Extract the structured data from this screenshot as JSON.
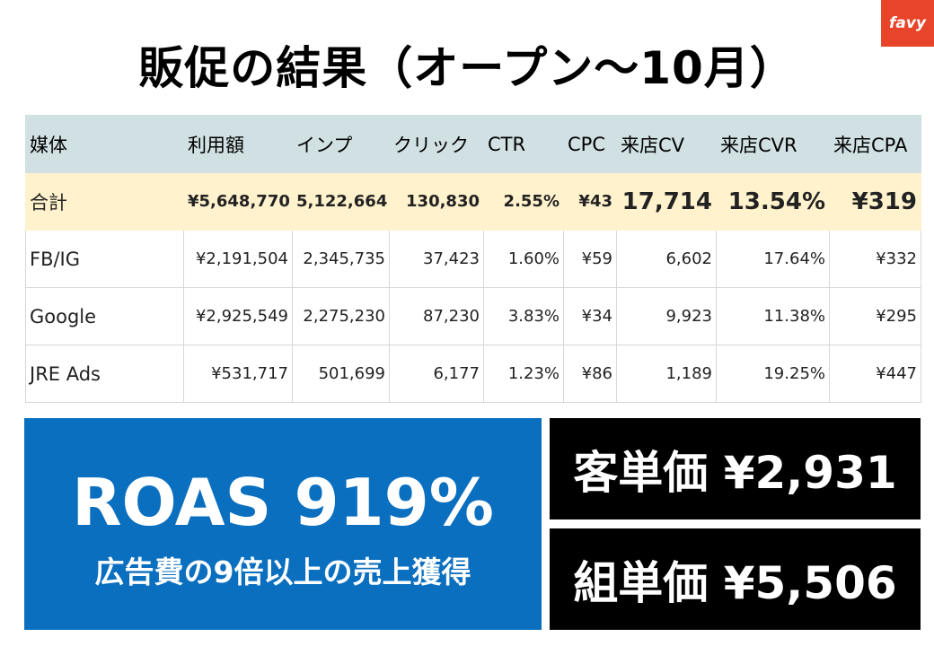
{
  "brand": {
    "logo_text": "favy",
    "logo_color": "#e8442a"
  },
  "title": "販促の結果（オープン〜10月）",
  "table": {
    "headers": [
      "媒体",
      "利用額",
      "インプ",
      "クリック",
      "CTR",
      "CPC",
      "来店CV",
      "来店CVR",
      "来店CPA"
    ],
    "total": [
      "合計",
      "¥5,648,770",
      "5,122,664",
      "130,830",
      "2.55%",
      "¥43",
      "17,714",
      "13.54%",
      "¥319"
    ],
    "rows": [
      [
        "FB/IG",
        "¥2,191,504",
        "2,345,735",
        "37,423",
        "1.60%",
        "¥59",
        "6,602",
        "17.64%",
        "¥332"
      ],
      [
        "Google",
        "¥2,925,549",
        "2,275,230",
        "87,230",
        "3.83%",
        "¥34",
        "9,923",
        "11.38%",
        "¥295"
      ],
      [
        "JRE Ads",
        "¥531,717",
        "501,699",
        "6,177",
        "1.23%",
        "¥86",
        "1,189",
        "19.25%",
        "¥447"
      ]
    ],
    "header_bg": "#d0e0e3",
    "total_bg": "#fff2cc"
  },
  "roas": {
    "main": "ROAS 919%",
    "sub": "広告費の9倍以上の売上獲得",
    "bg": "#0b6fbf"
  },
  "boxes": [
    {
      "text": "客単価 ¥2,931"
    },
    {
      "text": "組単価 ¥5,506"
    }
  ]
}
